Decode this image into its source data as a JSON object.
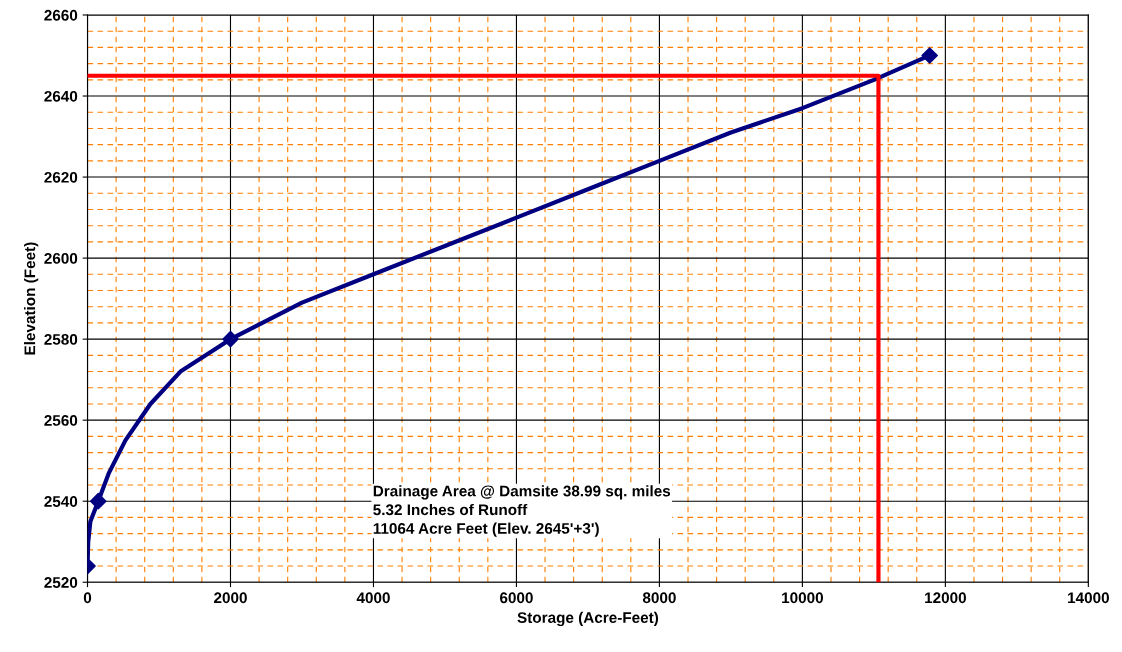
{
  "chart_data": {
    "type": "line",
    "xlabel": "Storage (Acre-Feet)",
    "ylabel": "Elevation (Feet)",
    "xlim": [
      0,
      14000
    ],
    "xticks": [
      0,
      {
        "value": 400,
        "label": null
      },
      {
        "value": 800,
        "label": null
      },
      {
        "value": 1200,
        "label": null
      },
      {
        "value": 1600,
        "label": null
      },
      2000,
      {
        "value": 2400,
        "label": null
      },
      {
        "value": 2800,
        "label": null
      },
      {
        "value": 3200,
        "label": null
      },
      {
        "value": 3600,
        "label": null
      },
      4000,
      {
        "value": 4400,
        "label": null
      },
      {
        "value": 4800,
        "label": null
      },
      {
        "value": 5200,
        "label": null
      },
      {
        "value": 5600,
        "label": null
      },
      6000,
      {
        "value": 6400,
        "label": null
      },
      {
        "value": 6800,
        "label": null
      },
      {
        "value": 7200,
        "label": null
      },
      {
        "value": 7600,
        "label": null
      },
      8000,
      {
        "value": 8400,
        "label": null
      },
      {
        "value": 8800,
        "label": null
      },
      {
        "value": 9200,
        "label": null
      },
      {
        "value": 9600,
        "label": null
      },
      10000,
      {
        "value": 10400,
        "label": null
      },
      {
        "value": 10800,
        "label": null
      },
      {
        "value": 11200,
        "label": null
      },
      {
        "value": 11600,
        "label": null
      },
      12000,
      {
        "value": 12400,
        "label": null
      },
      {
        "value": 12800,
        "label": null
      },
      {
        "value": 13200,
        "label": null
      },
      {
        "value": 13600,
        "label": null
      },
      14000
    ],
    "ylim": [
      2520,
      2660
    ],
    "yticks": [
      2520,
      {
        "value": 2524,
        "label": null
      },
      {
        "value": 2528,
        "label": null
      },
      {
        "value": 2532,
        "label": null
      },
      {
        "value": 2536,
        "label": null
      },
      2540,
      {
        "value": 2544,
        "label": null
      },
      {
        "value": 2548,
        "label": null
      },
      {
        "value": 2552,
        "label": null
      },
      {
        "value": 2556,
        "label": null
      },
      2560,
      {
        "value": 2564,
        "label": null
      },
      {
        "value": 2568,
        "label": null
      },
      {
        "value": 2572,
        "label": null
      },
      {
        "value": 2576,
        "label": null
      },
      2580,
      {
        "value": 2584,
        "label": null
      },
      {
        "value": 2588,
        "label": null
      },
      {
        "value": 2592,
        "label": null
      },
      {
        "value": 2596,
        "label": null
      },
      2600,
      {
        "value": 2604,
        "label": null
      },
      {
        "value": 2608,
        "label": null
      },
      {
        "value": 2612,
        "label": null
      },
      {
        "value": 2616,
        "label": null
      },
      2620,
      {
        "value": 2624,
        "label": null
      },
      {
        "value": 2628,
        "label": null
      },
      {
        "value": 2632,
        "label": null
      },
      {
        "value": 2636,
        "label": null
      },
      2640,
      {
        "value": 2644,
        "label": null
      },
      {
        "value": 2648,
        "label": null
      },
      {
        "value": 2652,
        "label": null
      },
      {
        "value": 2656,
        "label": null
      },
      2660
    ],
    "grid": true,
    "series": [
      {
        "color": "#000080",
        "x": [
          0,
          10,
          40,
          150,
          300,
          530,
          880,
          1300,
          2000,
          3000,
          4000,
          5000,
          6000,
          7000,
          8000,
          9000,
          10000,
          11000,
          11780
        ],
        "values": [
          2524,
          2530,
          2535,
          2540,
          2547,
          2555,
          2564,
          2572,
          2580,
          2589,
          2596,
          2603,
          2610,
          2617,
          2624,
          2631,
          2637,
          2644,
          2650
        ],
        "marker": "none"
      },
      {
        "type": "scatter",
        "color": "#000080",
        "x": [
          0,
          150,
          2000,
          11780
        ],
        "values": [
          2524,
          2540,
          2580,
          2650
        ],
        "marker": "diamond"
      },
      {
        "type": "line",
        "color": "#ff0000",
        "x": [
          0,
          11064,
          11064
        ],
        "values": [
          2645,
          2645,
          2520
        ],
        "marker": "none"
      }
    ],
    "annotations": [
      "Drainage Area @ Damsite 38.99 sq. miles",
      "5.32 Inches of Runoff",
      "11064 Acre Feet (Elev. 2645'+3')"
    ]
  }
}
